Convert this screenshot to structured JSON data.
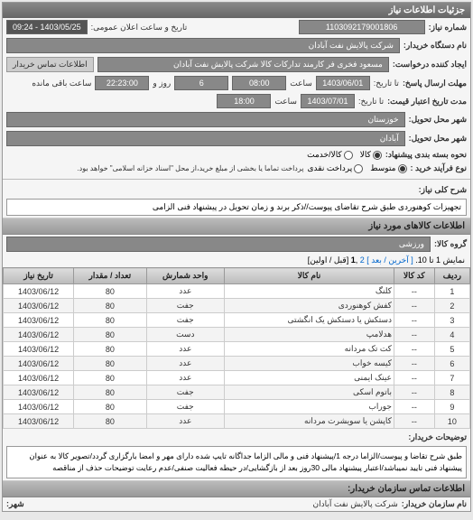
{
  "panel_title": "جزئیات اطلاعات نیاز",
  "header": {
    "request_no_label": "شماره نیاز:",
    "request_no": "1103092179001806",
    "announce_label": "تاریخ و ساعت اعلان عمومی:",
    "announce_value": "1403/05/25 - 09:24",
    "buyer_name_label": "نام دستگاه خریدار:",
    "buyer_name": "شرکت پالایش نفت آبادان",
    "requester_label": "ایجاد کننده درخواست:",
    "requester": "مسعود فخری فر کارمند تدارکات کالا شرکت پالایش نفت آبادان",
    "contact_label": "اطلاعات تماس خریدار",
    "deadline_send_label": "مهلت ارسال پاسخ:",
    "date_label": "تا تاریخ:",
    "date1": "1403/06/01",
    "time_label": "ساعت",
    "time1": "08:00",
    "days_label": "روز و",
    "days": "6",
    "remain_label": "ساعت باقی مانده",
    "remain_time": "22:23:00",
    "validity_label": "مدت تاریخ اعتبار قیمت:",
    "date2_label": "تا تاریخ:",
    "date2": "1403/07/01",
    "time2": "18:00",
    "city1_label": "شهر محل تحویل:",
    "city1": "خوزستان",
    "city2_label": "شهر محل تحویل:",
    "city2": "آبادان",
    "pkg_label": "نحوه بسته بندی پیشنهاد:",
    "pkg_options": [
      "کالا",
      "کالا/خدمت"
    ],
    "pkg_selected": 0,
    "buytype_label": "نوع فرآیند خرید :",
    "buytype_options": [
      "متوسط",
      "پرداخت نقدی"
    ],
    "buytype_note": "پرداخت تماما یا بخشی از مبلغ خرید،از محل \"اسناد خزانه اسلامی\" خواهد بود.",
    "buytype_selected": 0
  },
  "need_desc_label": "شرح کلی نیاز:",
  "need_desc": "تجهیزات کوهنوردی طبق شرح تقاضای پیوست//ذکر برند و زمان تحویل در پیشنهاد فنی الزامی",
  "goods_section": "اطلاعات کالاهای مورد نیاز",
  "goods_group_label": "گروه کالا:",
  "goods_group": "ورزشی",
  "pager": {
    "text": "نمایش 1 تا 10.",
    "links": [
      "[ آخرین / بعد ]",
      "2"
    ],
    "current": "1",
    "suffix": "[قبل / اولین]"
  },
  "table": {
    "columns": [
      "ردیف",
      "کد کالا",
      "نام کالا",
      "واحد شمارش",
      "تعداد / مقدار",
      "تاریخ نیاز"
    ],
    "rows": [
      [
        "1",
        "--",
        "کلنگ",
        "عدد",
        "80",
        "1403/06/12"
      ],
      [
        "2",
        "--",
        "کفش کوهنوردی",
        "جفت",
        "80",
        "1403/06/12"
      ],
      [
        "3",
        "--",
        "دستکش یا دستکش یک انگشتی",
        "جفت",
        "80",
        "1403/06/12"
      ],
      [
        "4",
        "--",
        "هدلامپ",
        "دست",
        "80",
        "1403/06/12"
      ],
      [
        "5",
        "--",
        "کت تک مردانه",
        "عدد",
        "80",
        "1403/06/12"
      ],
      [
        "6",
        "--",
        "کیسه خواب",
        "عدد",
        "80",
        "1403/06/12"
      ],
      [
        "7",
        "--",
        "عینک ایمنی",
        "عدد",
        "80",
        "1403/06/12"
      ],
      [
        "8",
        "--",
        "باتوم اسکی",
        "جفت",
        "80",
        "1403/06/12"
      ],
      [
        "9",
        "--",
        "جوراب",
        "جفت",
        "80",
        "1403/06/12"
      ],
      [
        "10",
        "--",
        "کاپشن یا سویشرت مردانه",
        "عدد",
        "80",
        "1403/06/12"
      ]
    ]
  },
  "buyer_desc_label": "توضیحات خریدار:",
  "buyer_desc": "طبق شرح تقاضا و پیوست/الزاما درجه 1/پیشنهاد فنی و مالی الزاما جداگانه تایپ شده دارای مهر و امضا بارگزاری گردد/تصویر کالا به عنوان پیشنهاد فنی تایید نمیباشد/اعتبار پیشنهاد مالی 30روز بعد از بازگشایی/در حیطه فعالیت صنفی/عدم رعایت توضیحات حذف از مناقصه",
  "buyer_contact_section": "اطلاعات تماس سازمان خریدار:",
  "buyer_org_label": "نام سازمان خریدار:",
  "buyer_org": "شرکت پالایش نفت آبادان",
  "city_label": "شهر:",
  "colors": {
    "header_bg": "#777777",
    "value_bg": "#888888",
    "border": "#999999"
  }
}
